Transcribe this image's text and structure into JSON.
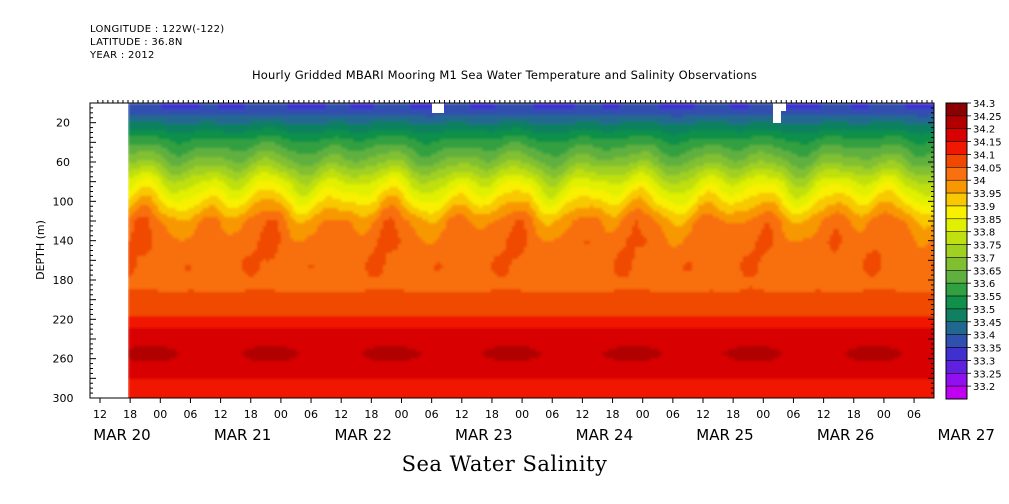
{
  "header": {
    "longitude": "LONGITUDE : 122W(-122)",
    "latitude": "LATITUDE : 36.8N",
    "year": "YEAR : 2012"
  },
  "title": "Hourly Gridded MBARI Mooring M1 Sea Water Temperature and Salinity Observations",
  "bottom_title": "Sea Water Salinity",
  "chart_data": {
    "type": "heatmap",
    "title": "Hourly Gridded MBARI Mooring M1 Sea Water Temperature and Salinity Observations",
    "variable": "Sea Water Salinity",
    "xlabel": "",
    "ylabel": "DEPTH (m)",
    "x_range": [
      "MAR 20 12:00",
      "MAR 27 12:00"
    ],
    "data_start": "MAR 20 18:00",
    "y_range": [
      300,
      0
    ],
    "y_ticks": [
      20,
      60,
      100,
      140,
      180,
      220,
      260,
      300
    ],
    "x_hour_ticks": [
      "12",
      "18",
      "00",
      "06",
      "12",
      "18",
      "00",
      "06",
      "12",
      "18",
      "00",
      "06",
      "12",
      "18",
      "00",
      "06",
      "12",
      "18",
      "00",
      "06",
      "12",
      "18",
      "00",
      "06",
      "12",
      "18",
      "00",
      "06"
    ],
    "x_day_labels": [
      "MAR 20",
      "MAR 21",
      "MAR 22",
      "MAR 23",
      "MAR 24",
      "MAR 25",
      "MAR 26",
      "MAR 27"
    ],
    "colorbar": {
      "levels": [
        "34.3",
        "34.25",
        "34.2",
        "34.15",
        "34.1",
        "34.05",
        "34",
        "33.95",
        "33.9",
        "33.85",
        "33.8",
        "33.75",
        "33.7",
        "33.65",
        "33.6",
        "33.55",
        "33.5",
        "33.45",
        "33.4",
        "33.35",
        "33.3",
        "33.25",
        "33.2"
      ],
      "colors": [
        "#8b0000",
        "#b00000",
        "#d80000",
        "#f01800",
        "#f04800",
        "#f87010",
        "#f89800",
        "#f8c800",
        "#f8f000",
        "#e0f000",
        "#c0e010",
        "#a0d020",
        "#80c030",
        "#60b040",
        "#30a040",
        "#109048",
        "#108060",
        "#206890",
        "#3050b0",
        "#4030d0",
        "#6020e0",
        "#9010f0",
        "#c000f0"
      ]
    },
    "profile": [
      {
        "depth": 5,
        "value": 33.4
      },
      {
        "depth": 20,
        "value": 33.5
      },
      {
        "depth": 40,
        "value": 33.62
      },
      {
        "depth": 60,
        "value": 33.72
      },
      {
        "depth": 80,
        "value": 33.85
      },
      {
        "depth": 100,
        "value": 33.95
      },
      {
        "depth": 120,
        "value": 34.05
      },
      {
        "depth": 140,
        "value": 34.08
      },
      {
        "depth": 180,
        "value": 34.08
      },
      {
        "depth": 210,
        "value": 34.13
      },
      {
        "depth": 230,
        "value": 34.2
      },
      {
        "depth": 255,
        "value": 34.25
      },
      {
        "depth": 280,
        "value": 34.2
      },
      {
        "depth": 300,
        "value": 34.18
      }
    ]
  }
}
